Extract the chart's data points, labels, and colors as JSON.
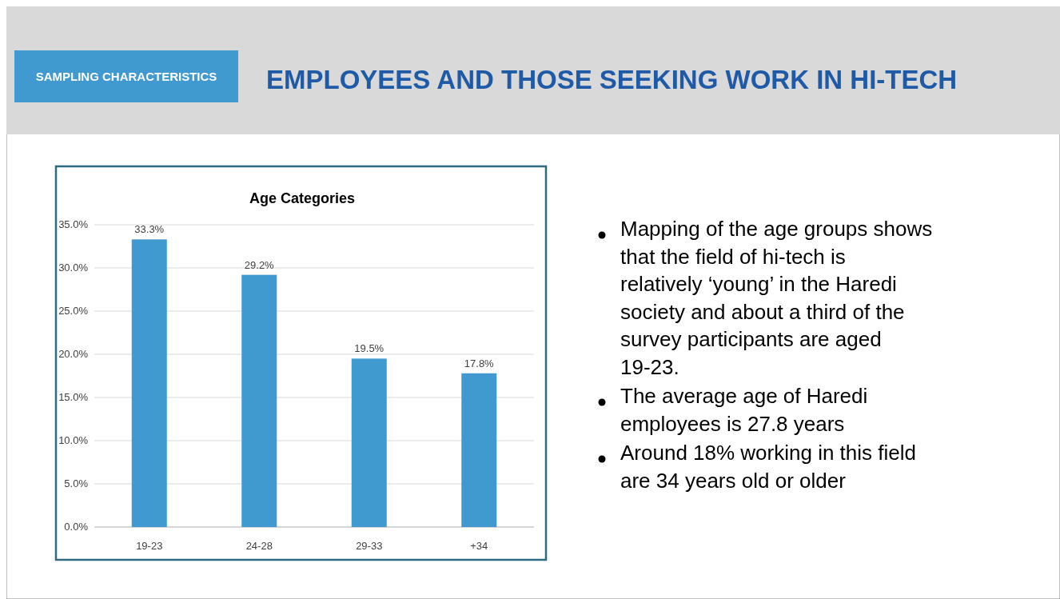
{
  "chart_data": [
    {
      "type": "other",
      "title": "EMPLOYEES AND THOSE SEEKING WORK IN HI-TECH",
      "subtitle": "SAMPLING CHARACTERISTICS",
      "annotations": [
        "Mapping of the age groups shows that the field of hi-tech is relatively ‘young’ in the Haredi society and about a third of the survey participants are aged 19-23.",
        "The average age of Haredi employees is 27.8 years",
        "Around 18% working in this field are 34 years old or older"
      ]
    },
    {
      "type": "bar",
      "title": "Age Categories",
      "categories": [
        "19-23",
        "24-28",
        "29-33",
        "+34"
      ],
      "values": [
        33.3,
        29.2,
        19.5,
        17.8
      ],
      "value_labels": [
        "33.3%",
        "29.2%",
        "19.5%",
        "17.8%"
      ],
      "color": "#4099cf",
      "ylim": [
        0,
        35
      ],
      "yticks": [
        {
          "value": 0,
          "label": "0.0%"
        },
        {
          "value": 5,
          "label": "5.0%"
        },
        {
          "value": 10,
          "label": "10.0%"
        },
        {
          "value": 15,
          "label": "15.0%"
        },
        {
          "value": 20,
          "label": "20.0%"
        },
        {
          "value": 25,
          "label": "25.0%"
        },
        {
          "value": 30,
          "label": "30.0%"
        },
        {
          "value": 35,
          "label": "35.0%"
        }
      ],
      "grid": "y"
    }
  ]
}
